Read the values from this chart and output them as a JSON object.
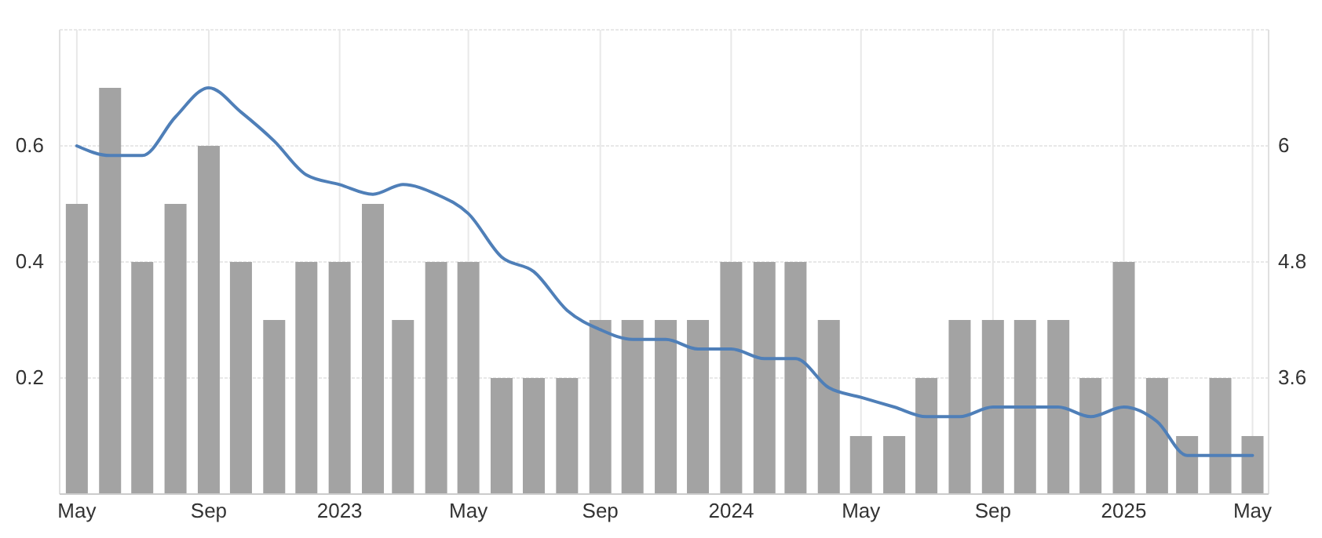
{
  "chart_data": {
    "type": "bar",
    "x": [
      "2022-05",
      "2022-06",
      "2022-07",
      "2022-08",
      "2022-09",
      "2022-10",
      "2022-11",
      "2022-12",
      "2023-01",
      "2023-02",
      "2023-03",
      "2023-04",
      "2023-05",
      "2023-06",
      "2023-07",
      "2023-08",
      "2023-09",
      "2023-10",
      "2023-11",
      "2023-12",
      "2024-01",
      "2024-02",
      "2024-03",
      "2024-04",
      "2024-05",
      "2024-06",
      "2024-07",
      "2024-08",
      "2024-09",
      "2024-10",
      "2024-11",
      "2024-12",
      "2025-01",
      "2025-02",
      "2025-03",
      "2025-04",
      "2025-05"
    ],
    "series": [
      {
        "color": "#a3a3a3",
        "values": [
          0.5,
          0.7,
          0.4,
          0.5,
          0.6,
          0.4,
          0.3,
          0.4,
          0.4,
          0.5,
          0.3,
          0.4,
          0.4,
          0.2,
          0.2,
          0.2,
          0.3,
          0.3,
          0.3,
          0.3,
          0.4,
          0.4,
          0.4,
          0.3,
          0.1,
          0.1,
          0.2,
          0.3,
          0.3,
          0.3,
          0.3,
          0.2,
          0.4,
          0.2,
          0.1,
          0.2,
          0.1
        ]
      },
      {
        "type": "line",
        "axis": "y2",
        "color": "#4f7fb8",
        "values": [
          6.0,
          5.9,
          5.9,
          6.3,
          6.6,
          6.35,
          6.05,
          5.7,
          5.6,
          5.5,
          5.6,
          5.5,
          5.3,
          4.85,
          4.7,
          4.3,
          4.1,
          4.0,
          4.0,
          3.9,
          3.9,
          3.8,
          3.8,
          3.5,
          3.4,
          3.3,
          3.2,
          3.2,
          3.3,
          3.3,
          3.3,
          3.2,
          3.3,
          3.15,
          2.8,
          2.8,
          2.8
        ]
      }
    ],
    "xlim": [
      "2022-04-15",
      "2025-05-16"
    ],
    "xticks": [
      {
        "value": "2022-05",
        "label": "May"
      },
      {
        "value": "2022-09",
        "label": "Sep"
      },
      {
        "value": "2023-01",
        "label": "2023"
      },
      {
        "value": "2023-05",
        "label": "May"
      },
      {
        "value": "2023-09",
        "label": "Sep"
      },
      {
        "value": "2024-01",
        "label": "2024"
      },
      {
        "value": "2024-05",
        "label": "May"
      },
      {
        "value": "2024-09",
        "label": "Sep"
      },
      {
        "value": "2025-01",
        "label": "2025"
      },
      {
        "value": "2025-05",
        "label": "May"
      }
    ],
    "ylim": [
      0,
      0.8
    ],
    "yticks": [
      0.2,
      0.4,
      0.6
    ],
    "y2lim": [
      2.4,
      7.2
    ],
    "y2ticks": [
      3.6,
      4.8,
      6
    ],
    "grid": true,
    "line_style": "solid",
    "marker": "none"
  }
}
